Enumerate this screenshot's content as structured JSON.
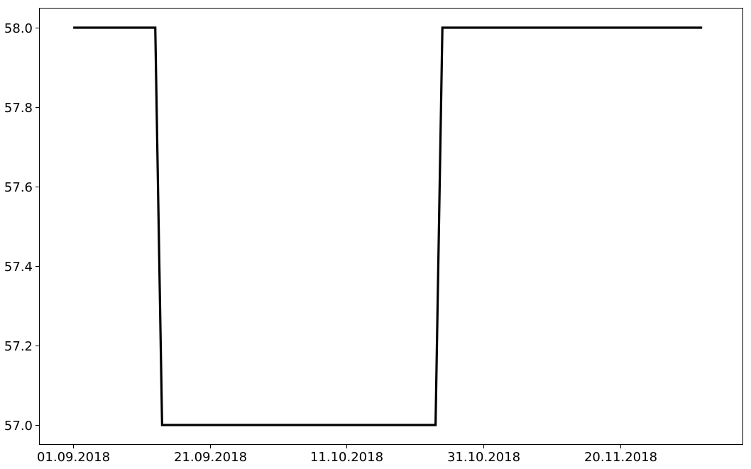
{
  "chart_data": {
    "type": "line",
    "title": "",
    "xlabel": "",
    "ylabel": "",
    "x_axis": {
      "kind": "date",
      "range": [
        "2018-08-27",
        "2018-12-08"
      ],
      "ticks": [
        {
          "date": "2018-09-01",
          "label": "01.09.2018"
        },
        {
          "date": "2018-09-21",
          "label": "21.09.2018"
        },
        {
          "date": "2018-10-11",
          "label": "11.10.2018"
        },
        {
          "date": "2018-10-31",
          "label": "31.10.2018"
        },
        {
          "date": "2018-11-20",
          "label": "20.11.2018"
        }
      ]
    },
    "y_axis": {
      "range": [
        56.95,
        58.05
      ],
      "ticks": [
        {
          "value": 57.0,
          "label": "57.0"
        },
        {
          "value": 57.2,
          "label": "57.2"
        },
        {
          "value": 57.4,
          "label": "57.4"
        },
        {
          "value": 57.6,
          "label": "57.6"
        },
        {
          "value": 57.8,
          "label": "57.8"
        },
        {
          "value": 58.0,
          "label": "58.0"
        }
      ]
    },
    "grid": false,
    "legend": "none",
    "series": [
      {
        "color": "#000000",
        "points": [
          {
            "x": "2018-09-01",
            "y": 58.0
          },
          {
            "x": "2018-09-13",
            "y": 58.0
          },
          {
            "x": "2018-09-14",
            "y": 57.0
          },
          {
            "x": "2018-10-24",
            "y": 57.0
          },
          {
            "x": "2018-10-25",
            "y": 58.0
          },
          {
            "x": "2018-12-02",
            "y": 58.0
          }
        ]
      }
    ]
  }
}
